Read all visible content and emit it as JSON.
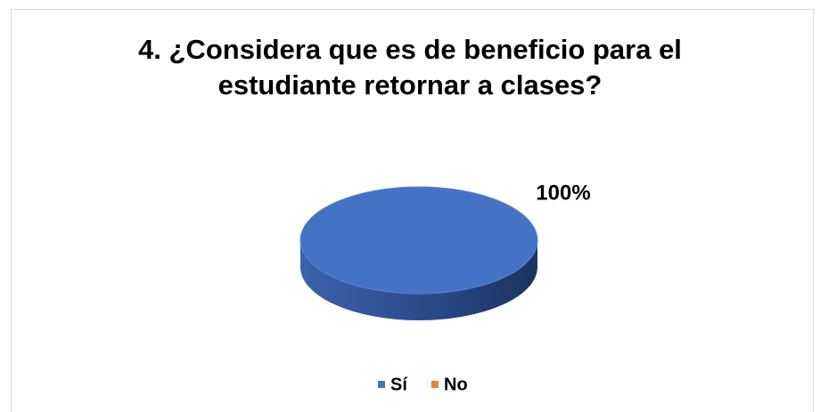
{
  "chart_data": {
    "type": "pie",
    "title": "4. ¿Considera que es de beneficio para el estudiante retornar a clases?",
    "categories": [
      "Sí",
      "No"
    ],
    "values": [
      100,
      0
    ],
    "value_labels": [
      "100%",
      null
    ],
    "colors": [
      "#4472c4",
      "#ed7d31"
    ],
    "legend": "bottom"
  }
}
